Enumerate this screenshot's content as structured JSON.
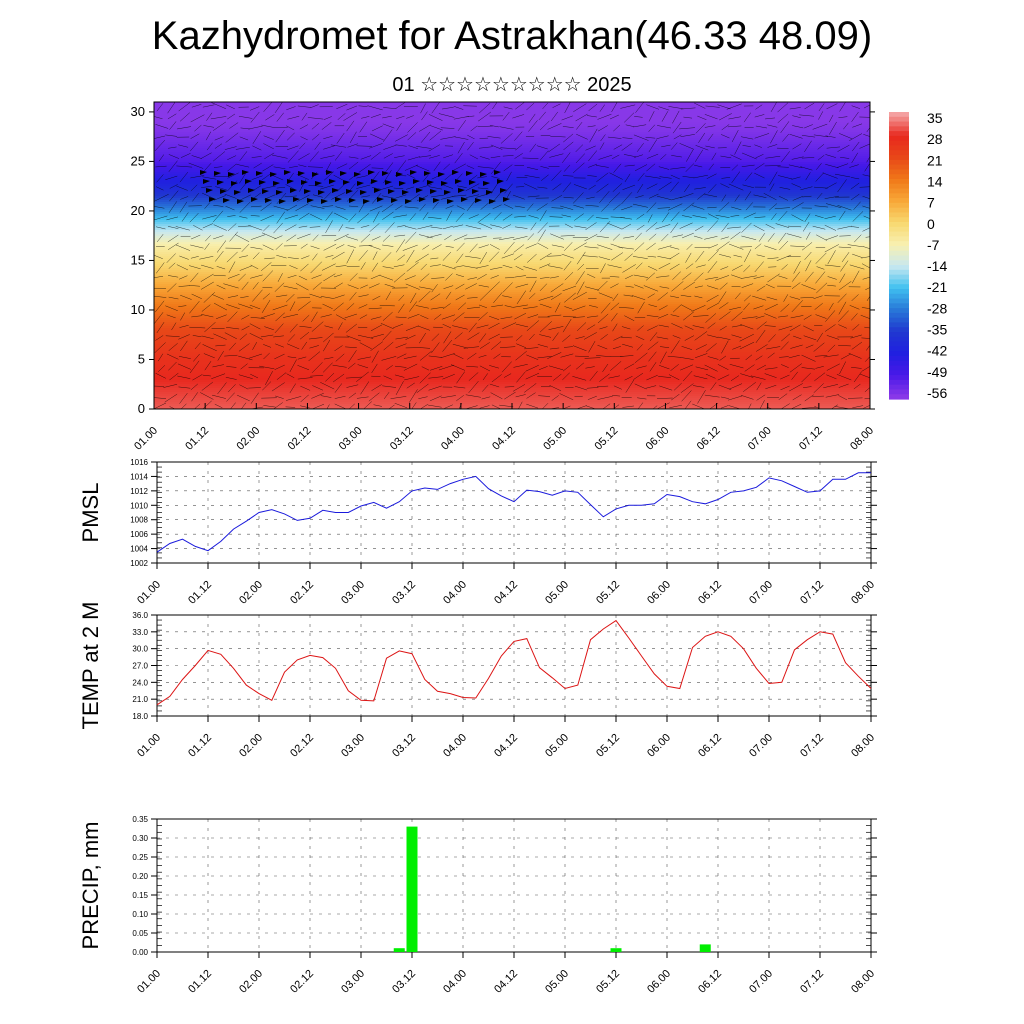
{
  "title": "Kazhydromet for Astrakhan(46.33 48.09)",
  "subtitle": "01 ☆☆☆☆☆☆☆☆☆ 2025",
  "time_ticks": [
    "01.00",
    "01.12",
    "02.00",
    "02.12",
    "03.00",
    "03.12",
    "04.00",
    "04.12",
    "05.00",
    "05.12",
    "06.00",
    "06.12",
    "07.00",
    "07.12",
    "08.00"
  ],
  "chart_data": [
    {
      "type": "heatmap",
      "name": "cross-section",
      "description_variable": "temperature with wind vectors",
      "x": [
        "01.00",
        "01.12",
        "02.00",
        "02.12",
        "03.00",
        "03.12",
        "04.00",
        "04.12",
        "05.00",
        "05.12",
        "06.00",
        "06.12",
        "07.00",
        "07.12",
        "08.00"
      ],
      "ylim": [
        0,
        31
      ],
      "yticks": [
        0,
        5,
        10,
        15,
        20,
        25,
        30
      ],
      "colorbar": {
        "labels": [
          "35",
          "28",
          "21",
          "14",
          "7",
          "0",
          "-7",
          "-14",
          "-21",
          "-28",
          "-35",
          "-42",
          "-49",
          "-56"
        ],
        "colors": [
          "#f4a0a0",
          "#e8281e",
          "#e84818",
          "#f07818",
          "#f8a838",
          "#f8d870",
          "#f8f0b0",
          "#c8e8f0",
          "#40c0f0",
          "#2878d8",
          "#2038d0",
          "#2020e0",
          "#4818e8",
          "#8838e8"
        ]
      },
      "zonal_bands": [
        {
          "height": 0,
          "value": 31
        },
        {
          "height": 5,
          "value": 26
        },
        {
          "height": 8,
          "value": 21
        },
        {
          "height": 11,
          "value": 12
        },
        {
          "height": 14,
          "value": 2
        },
        {
          "height": 16.5,
          "value": -6
        },
        {
          "height": 19,
          "value": -20
        },
        {
          "height": 22,
          "value": -38
        },
        {
          "height": 25,
          "value": -50
        },
        {
          "height": 28,
          "value": -55
        },
        {
          "height": 31,
          "value": -58
        }
      ],
      "grid": false
    },
    {
      "type": "line",
      "ylabel": "PMSL",
      "x": [
        "01.00",
        "01.03",
        "01.06",
        "01.09",
        "01.12",
        "01.15",
        "01.18",
        "01.21",
        "02.00",
        "02.03",
        "02.06",
        "02.09",
        "02.12",
        "02.15",
        "02.18",
        "02.21",
        "03.00",
        "03.03",
        "03.06",
        "03.09",
        "03.12",
        "03.15",
        "03.18",
        "03.21",
        "04.00",
        "04.03",
        "04.06",
        "04.09",
        "04.12",
        "04.15",
        "04.18",
        "04.21",
        "05.00",
        "05.03",
        "05.06",
        "05.09",
        "05.12",
        "05.15",
        "05.18",
        "05.21",
        "06.00",
        "06.03",
        "06.06",
        "06.09",
        "06.12",
        "06.15",
        "06.18",
        "06.21",
        "07.00",
        "07.03",
        "07.06",
        "07.09",
        "07.12",
        "07.15",
        "07.18",
        "07.21",
        "08.00"
      ],
      "y": [
        1003.5,
        1004.7,
        1005.3,
        1004.3,
        1003.7,
        1005.0,
        1006.7,
        1007.8,
        1009.0,
        1009.4,
        1008.8,
        1007.9,
        1008.2,
        1009.3,
        1009.0,
        1009.0,
        1009.9,
        1010.4,
        1009.6,
        1010.5,
        1012.0,
        1012.4,
        1012.2,
        1013.0,
        1013.6,
        1014.0,
        1012.3,
        1011.3,
        1010.5,
        1012.1,
        1011.9,
        1011.4,
        1012.0,
        1011.8,
        1010.1,
        1008.4,
        1009.5,
        1010.0,
        1010.0,
        1010.2,
        1011.5,
        1011.2,
        1010.5,
        1010.2,
        1010.8,
        1011.8,
        1012.0,
        1012.5,
        1013.8,
        1013.4,
        1012.6,
        1011.8,
        1012.0,
        1013.6,
        1013.6,
        1014.5,
        1014.5
      ],
      "ylim": [
        1002,
        1016
      ],
      "yticks": [
        1002,
        1004,
        1006,
        1008,
        1010,
        1012,
        1014,
        1016
      ],
      "color": "#1a1adc",
      "grid": true
    },
    {
      "type": "line",
      "ylabel": "TEMP at 2 M",
      "x": [
        "01.00",
        "01.03",
        "01.06",
        "01.09",
        "01.12",
        "01.15",
        "01.18",
        "01.21",
        "02.00",
        "02.03",
        "02.06",
        "02.09",
        "02.12",
        "02.15",
        "02.18",
        "02.21",
        "03.00",
        "03.03",
        "03.06",
        "03.09",
        "03.12",
        "03.15",
        "03.18",
        "03.21",
        "04.00",
        "04.03",
        "04.06",
        "04.09",
        "04.12",
        "04.15",
        "04.18",
        "04.21",
        "05.00",
        "05.03",
        "05.06",
        "05.09",
        "05.12",
        "05.15",
        "05.18",
        "05.21",
        "06.00",
        "06.03",
        "06.06",
        "06.09",
        "06.12",
        "06.15",
        "06.18",
        "06.21",
        "07.00",
        "07.03",
        "07.06",
        "07.09",
        "07.12",
        "07.15",
        "07.18",
        "07.21",
        "08.00"
      ],
      "y": [
        20.0,
        21.5,
        24.5,
        27.0,
        29.7,
        29.0,
        26.5,
        23.5,
        22.0,
        20.8,
        25.8,
        28.0,
        28.8,
        28.4,
        26.5,
        22.5,
        20.8,
        20.7,
        28.3,
        29.6,
        29.1,
        24.5,
        22.4,
        22.0,
        21.3,
        21.2,
        24.7,
        28.7,
        31.3,
        31.8,
        26.6,
        24.8,
        22.9,
        23.5,
        31.6,
        33.5,
        35.0,
        31.9,
        28.7,
        25.5,
        23.3,
        22.9,
        30.2,
        32.2,
        33.0,
        32.2,
        30.0,
        26.5,
        23.8,
        24.0,
        29.8,
        31.6,
        33.0,
        32.6,
        27.5,
        25.1,
        22.9
      ],
      "ylim": [
        18.0,
        36.0
      ],
      "yticks": [
        18.0,
        21.0,
        24.0,
        27.0,
        30.0,
        33.0,
        36.0
      ],
      "color": "#dc1414",
      "grid": true
    },
    {
      "type": "bar",
      "ylabel": "PRECIP, mm",
      "x": [
        "03.09",
        "03.12",
        "05.12",
        "06.09"
      ],
      "values": [
        0.01,
        0.33,
        0.01,
        0.02
      ],
      "ylim": [
        0.0,
        0.35
      ],
      "yticks": [
        0.0,
        0.05,
        0.1,
        0.15,
        0.2,
        0.25,
        0.3,
        0.35
      ],
      "ytick_labels": [
        "0.00",
        "0.05",
        "0.10",
        "0.15",
        "0.20",
        "0.25",
        "0.30",
        "0.35"
      ],
      "color": "#00ee00",
      "grid": true
    }
  ]
}
